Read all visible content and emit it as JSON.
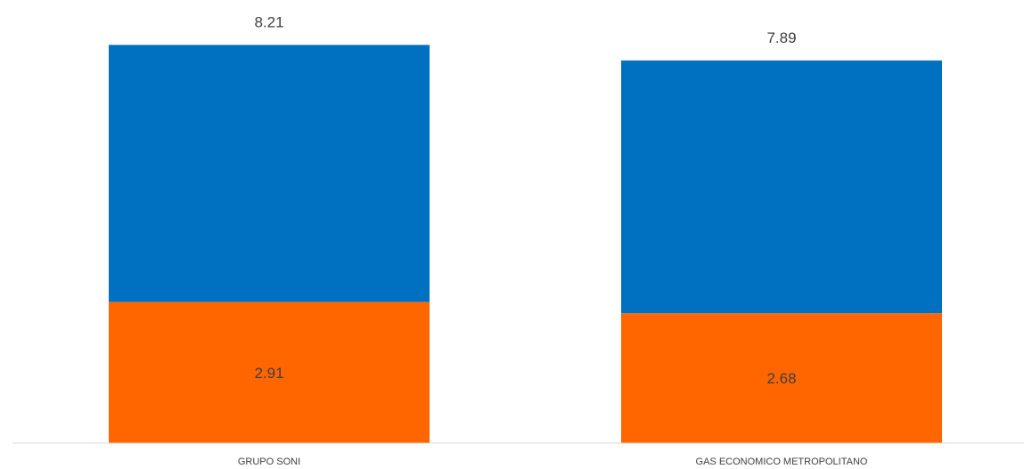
{
  "chart_data": {
    "type": "bar",
    "stacked": true,
    "categories": [
      "GRUPO SONI",
      "GAS ECONOMICO METROPOLITANO"
    ],
    "series": [
      {
        "values": [
          2.91,
          2.68
        ],
        "color": "#FF6600",
        "labels": [
          "2.91",
          "2.68"
        ]
      },
      {
        "values": [
          5.3,
          5.21
        ],
        "color": "#0070C0"
      }
    ],
    "totals": [
      8.21,
      7.89
    ],
    "total_labels": [
      "8.21",
      "7.89"
    ],
    "ylim": [
      0,
      8.6
    ],
    "grid": false,
    "legend": "none",
    "axis_color": "#D9D9D9"
  }
}
